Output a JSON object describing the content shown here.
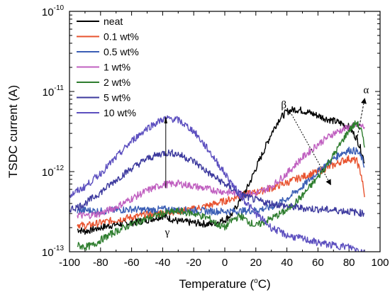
{
  "chart_data": {
    "type": "line",
    "title": "",
    "xlabel": "Temperature (°C)",
    "xlabel_parts": {
      "prefix": "Temperature (",
      "sup": "o",
      "suffix": "C)"
    },
    "ylabel": "TSDC current (A)",
    "xlim": [
      -100,
      100
    ],
    "ylim": [
      1e-13,
      1e-10
    ],
    "yscale": "log",
    "x_ticks": [
      -100,
      -80,
      -60,
      -40,
      -20,
      0,
      20,
      40,
      60,
      80,
      100
    ],
    "y_ticks": [
      {
        "value": 1e-13,
        "base": "10",
        "exp": "-13"
      },
      {
        "value": 1e-12,
        "base": "10",
        "exp": "-12"
      },
      {
        "value": 1e-11,
        "base": "10",
        "exp": "-11"
      },
      {
        "value": 1e-10,
        "base": "10",
        "exp": "-10"
      }
    ],
    "legend_position": "top-left",
    "annotations": [
      {
        "text": "β",
        "x": 38,
        "y": 6.2e-12
      },
      {
        "text": "α",
        "x": 91,
        "y": 9.5e-12
      },
      {
        "text": "γ",
        "x": -37,
        "y": 1.6e-13
      }
    ],
    "series": [
      {
        "name": "neat",
        "color": "#000000",
        "x": [
          -95,
          -90,
          -80,
          -70,
          -60,
          -50,
          -40,
          -30,
          -20,
          -10,
          0,
          5,
          10,
          15,
          20,
          25,
          30,
          35,
          40,
          45,
          50,
          55,
          60,
          65,
          70,
          75,
          80,
          85,
          88,
          90
        ],
        "y": [
          1.9e-13,
          1.8e-13,
          2e-13,
          2.2e-13,
          2.3e-13,
          2.5e-13,
          2.8e-13,
          2.4e-13,
          2.3e-13,
          2.2e-13,
          2.5e-13,
          3e-13,
          4.5e-13,
          6.5e-13,
          1.1e-12,
          1.8e-12,
          3e-12,
          4.5e-12,
          5.6e-12,
          6e-12,
          5.8e-12,
          5.4e-12,
          5e-12,
          4.6e-12,
          4.3e-12,
          4e-12,
          3.6e-12,
          2.6e-12,
          1.8e-12,
          1.3e-12
        ]
      },
      {
        "name": "0.1 wt%",
        "color": "#e8532f",
        "x": [
          -95,
          -90,
          -80,
          -70,
          -60,
          -50,
          -40,
          -30,
          -20,
          -10,
          0,
          10,
          20,
          30,
          40,
          50,
          60,
          70,
          75,
          80,
          85,
          88,
          90
        ],
        "y": [
          2.2e-13,
          2.1e-13,
          2.3e-13,
          2.5e-13,
          2.7e-13,
          2.9e-13,
          3.1e-13,
          3.2e-13,
          3.4e-13,
          3.8e-13,
          4.3e-13,
          5e-13,
          5.5e-13,
          6.2e-13,
          7.3e-13,
          8.6e-13,
          1e-12,
          1.2e-12,
          1.35e-12,
          1.45e-12,
          1.35e-12,
          9e-13,
          4.8e-13
        ]
      },
      {
        "name": "0.5 wt%",
        "color": "#3b5eb5",
        "x": [
          -95,
          -90,
          -80,
          -70,
          -60,
          -50,
          -40,
          -30,
          -20,
          -10,
          0,
          10,
          20,
          30,
          40,
          50,
          60,
          70,
          75,
          80,
          85,
          88,
          90
        ],
        "y": [
          3.2e-13,
          3.3e-13,
          3.2e-13,
          3.3e-13,
          3.4e-13,
          3.3e-13,
          3.4e-13,
          3.3e-13,
          3.3e-13,
          3.2e-13,
          3.2e-13,
          3.2e-13,
          3.3e-13,
          3.6e-13,
          4.6e-13,
          6.5e-13,
          1e-12,
          1.45e-12,
          1.7e-12,
          1.85e-12,
          1.8e-12,
          1.5e-12,
          1.15e-12
        ]
      },
      {
        "name": "1 wt%",
        "color": "#c060c0",
        "x": [
          -95,
          -90,
          -80,
          -70,
          -60,
          -50,
          -40,
          -30,
          -20,
          -10,
          0,
          10,
          20,
          30,
          40,
          50,
          60,
          70,
          80,
          85,
          88,
          90
        ],
        "y": [
          2.9e-13,
          2.8e-13,
          3e-13,
          3.6e-13,
          4.6e-13,
          5.8e-13,
          6.9e-13,
          7.1e-13,
          6.6e-13,
          6e-13,
          5.6e-13,
          5.3e-13,
          5.3e-13,
          6.5e-13,
          9.5e-13,
          1.5e-12,
          2.2e-12,
          3e-12,
          3.6e-12,
          3.8e-12,
          3.7e-12,
          3.6e-12
        ]
      },
      {
        "name": "2 wt%",
        "color": "#2e7d2e",
        "x": [
          -95,
          -90,
          -85,
          -80,
          -70,
          -60,
          -50,
          -40,
          -30,
          -20,
          -10,
          -5,
          0,
          5,
          10,
          15,
          20,
          30,
          40,
          50,
          60,
          70,
          75,
          80,
          85,
          88,
          90
        ],
        "y": [
          1.2e-13,
          1.15e-13,
          1.2e-13,
          1.4e-13,
          1.8e-13,
          2.2e-13,
          2.6e-13,
          3e-13,
          3.2e-13,
          3e-13,
          2.6e-13,
          2.2e-13,
          2e-13,
          2.5e-13,
          2.8e-13,
          2.4e-13,
          2.1e-13,
          2.6e-13,
          3.3e-13,
          5e-13,
          8.5e-13,
          1.6e-12,
          2.3e-12,
          3.3e-12,
          4.1e-12,
          3.2e-12,
          2e-12
        ]
      },
      {
        "name": "5 wt%",
        "color": "#3d3a9e",
        "x": [
          -100,
          -95,
          -90,
          -80,
          -70,
          -60,
          -50,
          -40,
          -35,
          -30,
          -20,
          -10,
          0,
          10,
          20,
          30,
          40,
          50,
          60,
          70,
          80,
          90
        ],
        "y": [
          3.4e-13,
          3.6e-13,
          4e-13,
          5.5e-13,
          7.9e-13,
          1.1e-12,
          1.45e-12,
          1.7e-12,
          1.72e-12,
          1.65e-12,
          1.35e-12,
          9.5e-13,
          7e-13,
          5.2e-13,
          4.4e-13,
          4e-13,
          3.7e-13,
          3.5e-13,
          3.4e-13,
          3.3e-13,
          3.2e-13,
          3e-13
        ]
      },
      {
        "name": "10 wt%",
        "color": "#5c4fbf",
        "x": [
          -100,
          -95,
          -90,
          -80,
          -70,
          -60,
          -50,
          -40,
          -35,
          -30,
          -20,
          -10,
          0,
          10,
          20,
          30,
          40,
          50,
          60,
          70,
          80,
          90
        ],
        "y": [
          5e-13,
          5.7e-13,
          6.5e-13,
          9.5e-13,
          1.5e-12,
          2.4e-12,
          3.5e-12,
          4.5e-12,
          4.6e-12,
          4.4e-12,
          3.2e-12,
          1.8e-12,
          9.5e-13,
          5e-13,
          3e-13,
          2e-13,
          1.6e-13,
          1.45e-13,
          1.3e-13,
          1.2e-13,
          1.15e-13,
          1e-13
        ]
      }
    ]
  }
}
